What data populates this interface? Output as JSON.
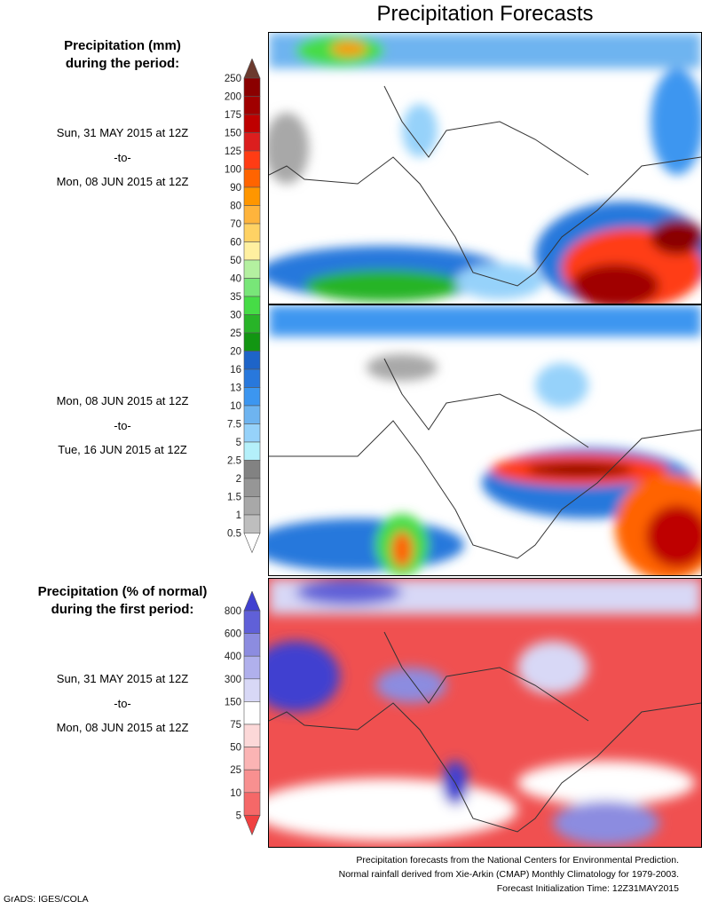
{
  "title": "Precipitation Forecasts",
  "period1": {
    "heading_line1": "Precipitation (mm)",
    "heading_line2": "during the period:",
    "start": "Sun, 31 MAY 2015 at 12Z",
    "to": "-to-",
    "end": "Mon, 08 JUN 2015 at 12Z"
  },
  "period2": {
    "start": "Mon, 08 JUN 2015 at 12Z",
    "to": "-to-",
    "end": "Tue, 16 JUN 2015 at 12Z"
  },
  "percent": {
    "heading_line1": "Precipitation (% of normal)",
    "heading_line2": "during the first period:",
    "start": "Sun, 31 MAY 2015 at 12Z",
    "to": "-to-",
    "end": "Mon, 08 JUN 2015 at 12Z"
  },
  "colorbar_mm": {
    "labels": [
      "250",
      "200",
      "175",
      "150",
      "125",
      "100",
      "90",
      "80",
      "70",
      "60",
      "50",
      "40",
      "35",
      "30",
      "25",
      "20",
      "16",
      "13",
      "10",
      "7.5",
      "5",
      "2.5",
      "2",
      "1.5",
      "1",
      "0.5"
    ],
    "top_color": "#6b3a2e",
    "bottom_color": "#ffffff",
    "colors": [
      "#8b0000",
      "#a00000",
      "#be0000",
      "#dc1e1e",
      "#ff3c14",
      "#ff6400",
      "#ff9600",
      "#ffb43c",
      "#ffd264",
      "#fff0a0",
      "#b4f0a0",
      "#78e678",
      "#46dc46",
      "#28b428",
      "#129612",
      "#1e64c8",
      "#2878dc",
      "#3c96f0",
      "#6eb4f0",
      "#96d2fa",
      "#b4f0fa",
      "#828282",
      "#969696",
      "#a8a8a8",
      "#bebebe"
    ]
  },
  "colorbar_pct": {
    "labels": [
      "800",
      "600",
      "400",
      "300",
      "150",
      "75",
      "50",
      "25",
      "10",
      "5"
    ],
    "top_color": "#4040d0",
    "bottom_color": "#f04040",
    "colors": [
      "#6060d8",
      "#8c8ce0",
      "#b0b0ec",
      "#d8d8f6",
      "#ffffff",
      "#fcd8d8",
      "#fbb4b4",
      "#f89090",
      "#f56868"
    ]
  },
  "footer": {
    "line1": "Precipitation forecasts from the National Centers for Environmental Prediction.",
    "line2": "Normal rainfall derived from Xie-Arkin (CMAP) Monthly Climatology for 1979-2003.",
    "line3": "Forecast Initialization Time: 12Z31MAY2015",
    "credit": "GrADS: IGES/COLA"
  }
}
